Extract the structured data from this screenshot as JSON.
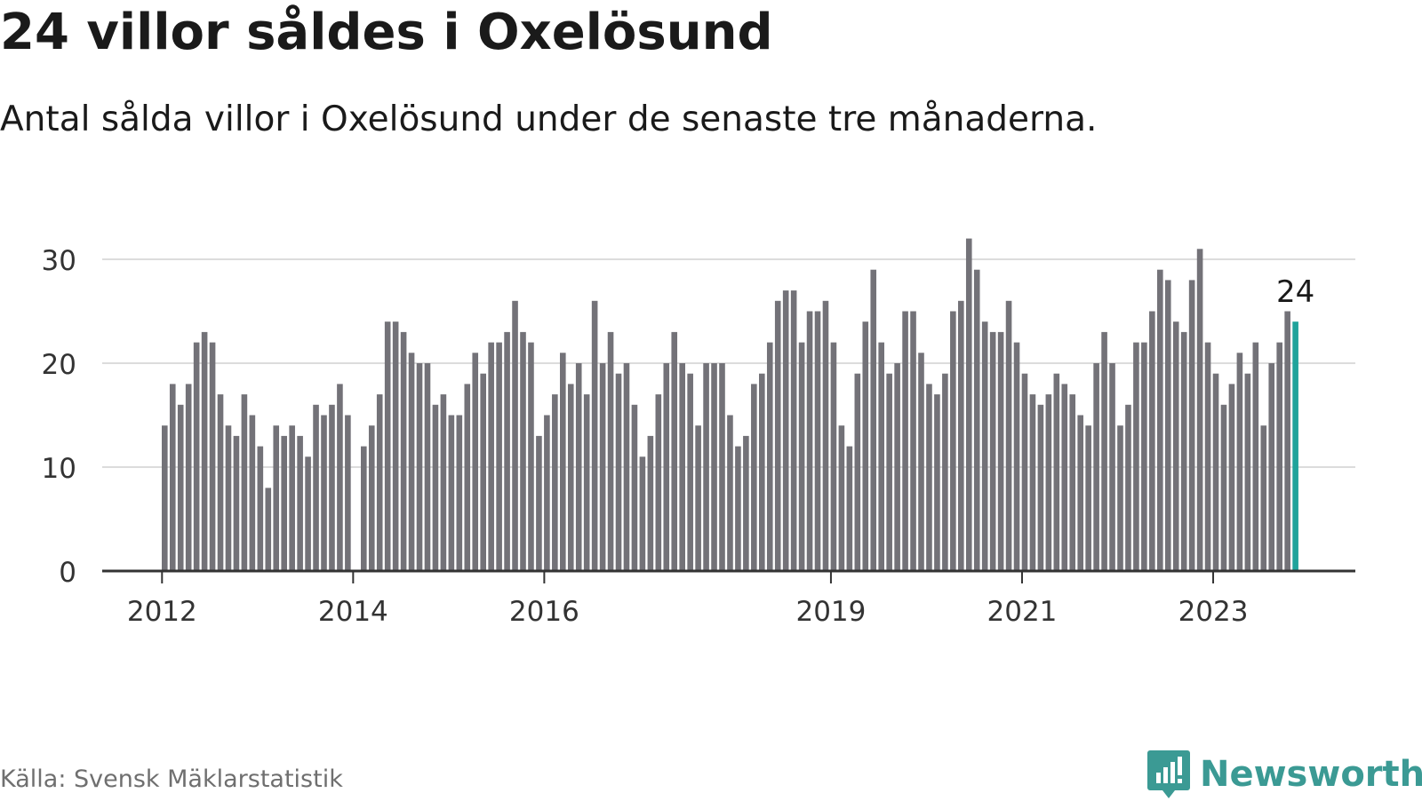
{
  "header": {
    "title": "24 villor såldes i Oxelösund",
    "subtitle": "Antal sålda villor i Oxelösund under de senaste tre månaderna."
  },
  "footer": {
    "source": "Källa: Svensk Mäklarstatistik",
    "brand": "Newsworthy",
    "brand_icon": "newsworthy-logo-icon"
  },
  "colors": {
    "bar": "#737278",
    "highlight": "#1fa39b",
    "grid": "#dcdcdc",
    "axis": "#333333",
    "brand": "#3b9a94"
  },
  "chart_data": {
    "type": "bar",
    "start": "2012-01",
    "frequency": "monthly",
    "values": [
      14,
      18,
      16,
      18,
      22,
      23,
      22,
      17,
      14,
      13,
      17,
      15,
      12,
      8,
      14,
      13,
      14,
      13,
      11,
      16,
      15,
      16,
      18,
      15,
      0,
      12,
      14,
      17,
      24,
      24,
      23,
      21,
      20,
      20,
      16,
      17,
      15,
      15,
      18,
      21,
      19,
      22,
      22,
      23,
      26,
      23,
      22,
      13,
      15,
      17,
      21,
      18,
      20,
      17,
      26,
      20,
      23,
      19,
      20,
      16,
      11,
      13,
      17,
      20,
      23,
      20,
      19,
      14,
      20,
      20,
      20,
      15,
      12,
      13,
      18,
      19,
      22,
      26,
      27,
      27,
      22,
      25,
      25,
      26,
      22,
      14,
      12,
      19,
      24,
      29,
      22,
      19,
      20,
      25,
      25,
      21,
      18,
      17,
      19,
      25,
      26,
      32,
      29,
      24,
      23,
      23,
      26,
      22,
      19,
      17,
      16,
      17,
      19,
      18,
      17,
      15,
      14,
      20,
      23,
      20,
      14,
      16,
      22,
      22,
      25,
      29,
      28,
      24,
      23,
      28,
      31,
      22,
      19,
      16,
      18,
      21,
      19,
      22,
      14,
      20,
      22,
      25,
      24
    ],
    "highlight_last": true,
    "last_label": "24",
    "yticks": [
      0,
      10,
      20,
      30
    ],
    "ylim": [
      0,
      32
    ],
    "xticks": [
      {
        "label": "2012",
        "index": 0
      },
      {
        "label": "2014",
        "index": 24
      },
      {
        "label": "2016",
        "index": 48
      },
      {
        "label": "2019",
        "index": 84
      },
      {
        "label": "2021",
        "index": 108
      },
      {
        "label": "2023",
        "index": 132
      }
    ],
    "grid": true,
    "legend": "none"
  }
}
